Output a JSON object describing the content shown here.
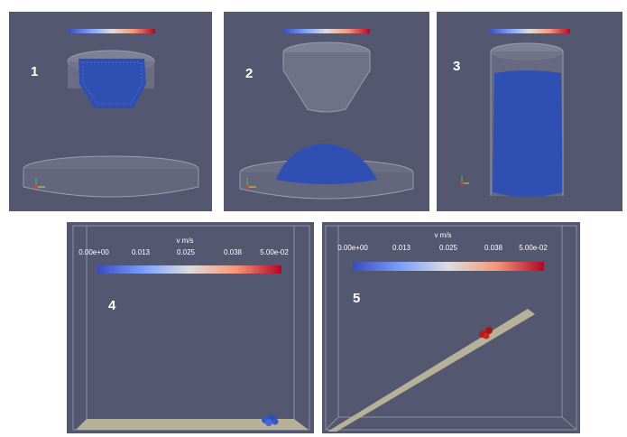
{
  "panels": [
    {
      "number": "1"
    },
    {
      "number": "2"
    },
    {
      "number": "3"
    },
    {
      "number": "4"
    },
    {
      "number": "5"
    }
  ],
  "colorbar_large": {
    "title": "v m/s",
    "ticks": [
      "0.00e+00",
      "0.013",
      "0.025",
      "0.038",
      "5.00e-02"
    ]
  },
  "colors": {
    "background": "#535770",
    "particles": "#2f4fb3",
    "plate": "#b7b19a",
    "hot_particles": "#b81a1f"
  }
}
